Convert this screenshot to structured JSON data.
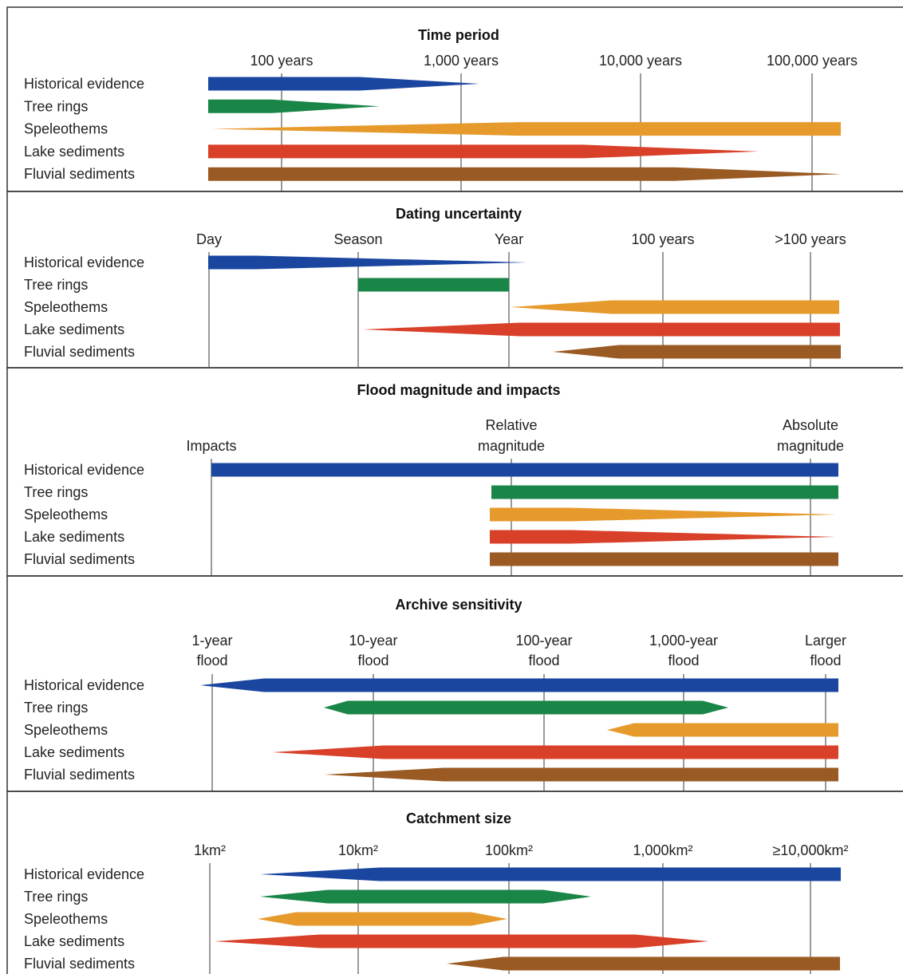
{
  "archive_names": [
    "Historical evidence",
    "Tree rings",
    "Speleothems",
    "Lake sediments",
    "Fluvial sediments"
  ],
  "colors": {
    "historical": "#1a46a0",
    "tree": "#198546",
    "speleothem": "#e79a2c",
    "lake": "#d9402a",
    "fluvial": "#9a5a23",
    "gridline": "#9a9a9a",
    "border": "#333333"
  },
  "panels": [
    {
      "key": "time",
      "title": "Time period",
      "axis": [
        [
          "100 years"
        ],
        [
          "1,000 years"
        ],
        [
          "10,000 years"
        ],
        [
          "100,000 years"
        ]
      ]
    },
    {
      "key": "dating",
      "title": "Dating uncertainty",
      "axis": [
        [
          "Day"
        ],
        [
          "Season"
        ],
        [
          "Year"
        ],
        [
          "100 years"
        ],
        [
          ">100 years"
        ]
      ]
    },
    {
      "key": "magnitude",
      "title": "Flood magnitude and impacts",
      "axis": [
        [
          "Impacts"
        ],
        [
          "Relative",
          "magnitude"
        ],
        [
          "Absolute",
          "magnitude"
        ]
      ]
    },
    {
      "key": "sensitivity",
      "title": "Archive sensitivity",
      "axis": [
        [
          "1-year",
          "flood"
        ],
        [
          "10-year",
          "flood"
        ],
        [
          "100-year",
          "flood"
        ],
        [
          "1,000-year",
          "flood"
        ],
        [
          "Larger",
          "flood"
        ]
      ]
    },
    {
      "key": "catchment",
      "title": "Catchment size",
      "axis": [
        [
          "1km²"
        ],
        [
          "10km²"
        ],
        [
          "100km²"
        ],
        [
          "1,000km²"
        ],
        [
          "≥10,000km²"
        ]
      ]
    }
  ]
}
